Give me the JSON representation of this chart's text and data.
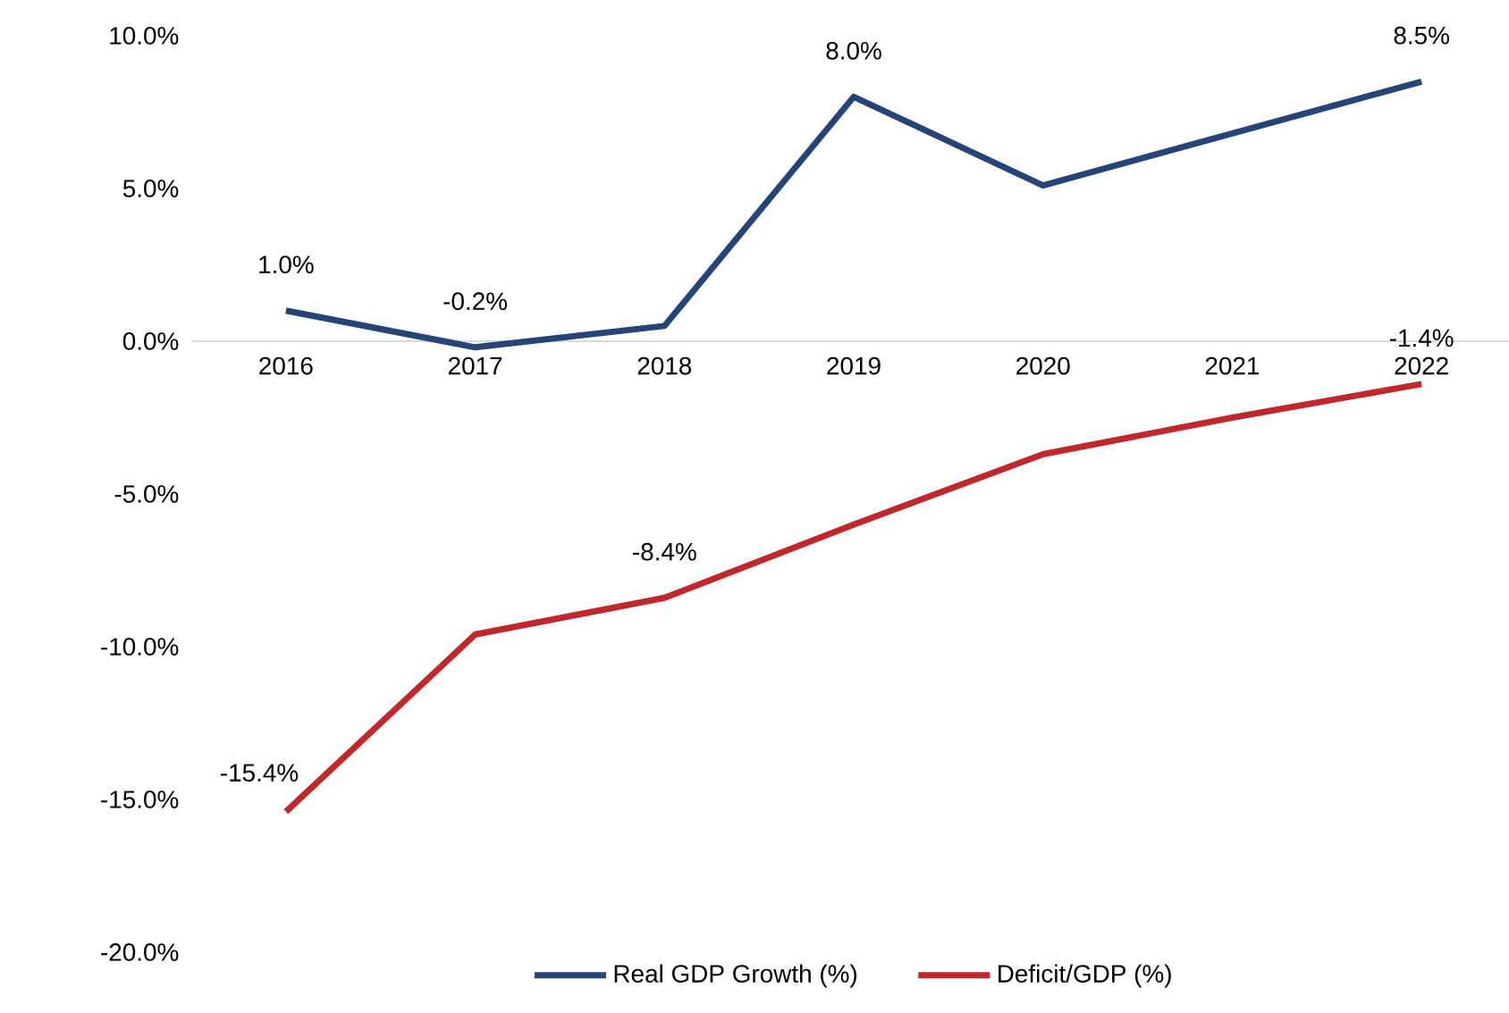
{
  "chart_data": {
    "type": "line",
    "categories": [
      "2016",
      "2017",
      "2018",
      "2019",
      "2020",
      "2021",
      "2022"
    ],
    "series": [
      {
        "name": "Real GDP Growth (%)",
        "color": "#264478",
        "values": [
          1.0,
          -0.2,
          0.5,
          8.0,
          5.1,
          6.8,
          8.5
        ],
        "value_labels": [
          "1.0%",
          "-0.2%",
          null,
          "8.0%",
          null,
          null,
          "8.5%"
        ]
      },
      {
        "name": "Deficit/GDP (%)",
        "color": "#c0282d",
        "values": [
          -15.4,
          -9.6,
          -8.4,
          -6.0,
          -3.7,
          -2.5,
          -1.4
        ],
        "value_labels": [
          "-15.4%",
          null,
          "-8.4%",
          null,
          null,
          null,
          "-1.4%"
        ]
      }
    ],
    "ylim": [
      -20,
      10
    ],
    "yticks": [
      {
        "value": -20,
        "label": "-20.0%"
      },
      {
        "value": -15,
        "label": "-15.0%"
      },
      {
        "value": -10,
        "label": "-10.0%"
      },
      {
        "value": -5,
        "label": "-5.0%"
      },
      {
        "value": 0,
        "label": "0.0%"
      },
      {
        "value": 5,
        "label": "5.0%"
      },
      {
        "value": 10,
        "label": "10.0%"
      }
    ],
    "legend": "bottom",
    "marker": "none"
  }
}
